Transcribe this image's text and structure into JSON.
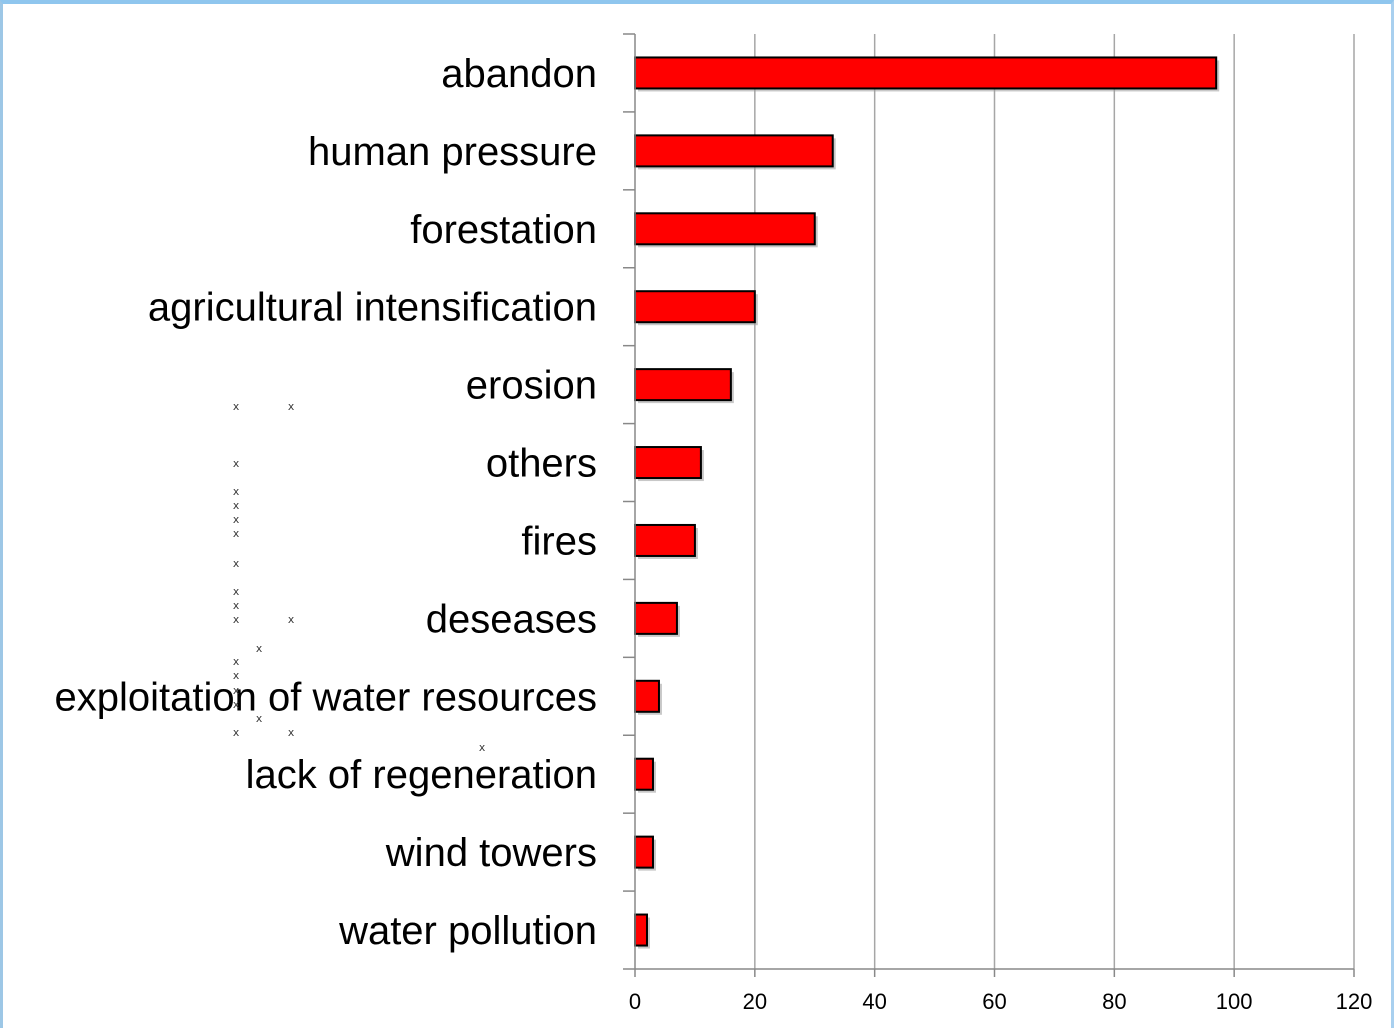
{
  "chart_data": {
    "type": "bar",
    "orientation": "horizontal",
    "categories": [
      "abandon",
      "human pressure",
      "forestation",
      "agricultural intensification",
      "erosion",
      "others",
      "fires",
      "deseases",
      "exploitation of water resources",
      "lack of regeneration",
      "wind towers",
      "water pollution"
    ],
    "values": [
      97,
      33,
      30,
      20,
      16,
      11,
      10,
      7,
      4,
      3,
      3,
      2
    ],
    "xlim": [
      0,
      120
    ],
    "xticks": [
      0,
      20,
      40,
      60,
      80,
      100,
      120
    ],
    "xtick_labels": [
      "0",
      "20",
      "40",
      "60",
      "80",
      "100",
      "120"
    ],
    "grid": "vertical",
    "bar_color": "#ff0000",
    "bar_edge_color": "#000000",
    "title": "",
    "xlabel": "",
    "ylabel": ""
  },
  "colors": {
    "frame_border": "#8fc6ee",
    "gridline": "#a6a6a6",
    "axis": "#888888"
  }
}
